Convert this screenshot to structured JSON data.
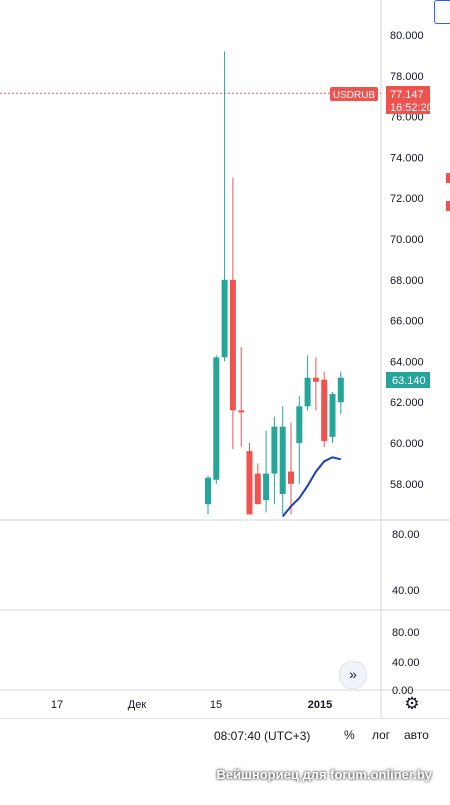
{
  "symbol": {
    "ticker": "USDRUB",
    "current_price": "77.147",
    "countdown": "16:52:20",
    "last_close_label": "63.140"
  },
  "price_axis": {
    "ticks": [
      "80.000",
      "78.000",
      "76.000",
      "74.000",
      "72.000",
      "70.000",
      "68.000",
      "66.000",
      "64.000",
      "62.000",
      "60.000",
      "58.000"
    ]
  },
  "indicator_panes": [
    {
      "ticks": [
        "80.00",
        "40.00"
      ]
    },
    {
      "ticks": [
        "80.00",
        "40.00",
        "0.00"
      ]
    }
  ],
  "time_axis": {
    "labels": [
      {
        "text": "17",
        "bold": false
      },
      {
        "text": "Дек",
        "bold": false
      },
      {
        "text": "15",
        "bold": false
      },
      {
        "text": "2015",
        "bold": true
      }
    ]
  },
  "bottom_bar": {
    "clock": "08:07:40 (UTC+3)",
    "percent": "%",
    "log": "лог",
    "auto": "авто"
  },
  "watermark": "Вейшнориец для forum.onliner.by",
  "icons": {
    "scroll_right": "double-chevron-right-icon",
    "settings": "gear-icon"
  },
  "colors": {
    "up": "#26a69a",
    "down": "#ef5350",
    "ma_line": "#1e3fbf",
    "price_line": "#ef5350",
    "last_label": "#26a69a"
  },
  "chart_data": {
    "type": "candlestick",
    "symbol": "USDRUB",
    "y_range": [
      56.5,
      81
    ],
    "candles": [
      {
        "o": 57.0,
        "h": 58.4,
        "l": 56.5,
        "c": 58.3
      },
      {
        "o": 58.2,
        "h": 64.3,
        "l": 58.0,
        "c": 64.2
      },
      {
        "o": 64.2,
        "h": 79.2,
        "l": 64.0,
        "c": 68.0
      },
      {
        "o": 68.0,
        "h": 73.0,
        "l": 59.7,
        "c": 61.6
      },
      {
        "o": 61.6,
        "h": 64.7,
        "l": 59.8,
        "c": 61.5
      },
      {
        "o": 59.6,
        "h": 60.0,
        "l": 56.5,
        "c": 56.5
      },
      {
        "o": 58.5,
        "h": 59.0,
        "l": 57.2,
        "c": 57.0
      },
      {
        "o": 57.2,
        "h": 60.6,
        "l": 56.6,
        "c": 58.5
      },
      {
        "o": 58.5,
        "h": 61.3,
        "l": 57.0,
        "c": 60.8
      },
      {
        "o": 57.5,
        "h": 61.8,
        "l": 56.5,
        "c": 60.8
      },
      {
        "o": 58.6,
        "h": 61.0,
        "l": 56.5,
        "c": 58.0
      },
      {
        "o": 60.0,
        "h": 62.3,
        "l": 58.0,
        "c": 61.8
      },
      {
        "o": 61.8,
        "h": 64.3,
        "l": 61.6,
        "c": 63.2
      },
      {
        "o": 63.2,
        "h": 64.2,
        "l": 61.6,
        "c": 63.0
      },
      {
        "o": 63.1,
        "h": 63.5,
        "l": 59.8,
        "c": 60.1
      },
      {
        "o": 60.3,
        "h": 62.5,
        "l": 60.0,
        "c": 62.4
      },
      {
        "o": 62.0,
        "h": 63.5,
        "l": 61.4,
        "c": 63.2
      }
    ],
    "ma_series": [
      {
        "i": 9,
        "v": 56.4
      },
      {
        "i": 10,
        "v": 56.9
      },
      {
        "i": 11,
        "v": 57.3
      },
      {
        "i": 12,
        "v": 57.9
      },
      {
        "i": 13,
        "v": 58.6
      },
      {
        "i": 14,
        "v": 59.1
      },
      {
        "i": 15,
        "v": 59.3
      },
      {
        "i": 16,
        "v": 59.2
      }
    ],
    "current_price": 77.147,
    "last_close": 63.14
  }
}
